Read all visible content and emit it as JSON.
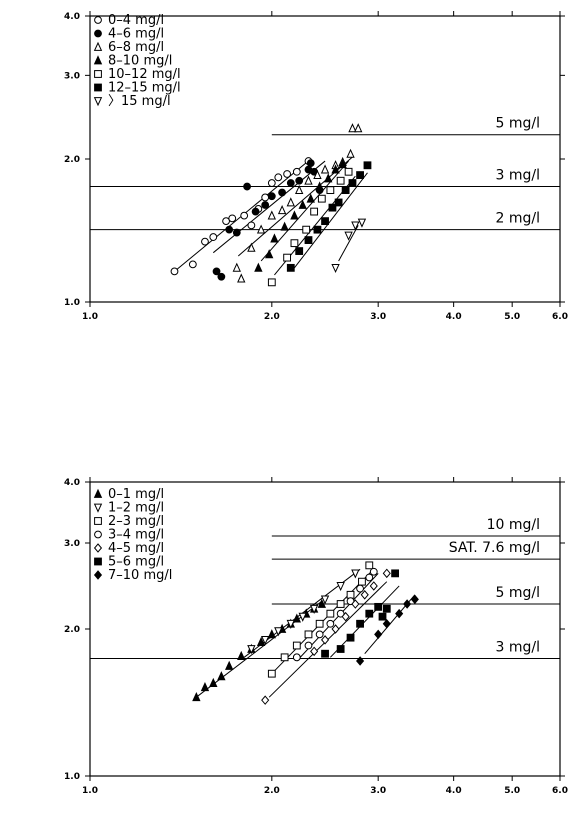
{
  "chart_data": [
    {
      "type": "scatter",
      "x_scale": "log",
      "y_scale": "log",
      "xlim": [
        1.0,
        6.0
      ],
      "ylim": [
        1.0,
        4.0
      ],
      "x_ticks": [
        1.0,
        2.0,
        3.0,
        4.0,
        5.0,
        6.0
      ],
      "x_tick_labels": [
        "1.0",
        "2.0",
        "3.0",
        "4.0",
        "5.0",
        "6.0"
      ],
      "y_ticks": [
        1.0,
        2.0,
        3.0,
        4.0
      ],
      "y_tick_labels": [
        "1.0",
        "2.0",
        "3.0",
        "4.0"
      ],
      "legend_position": "top-left",
      "reference_lines": [
        {
          "label": "5 mg/l",
          "y": 2.25,
          "x_start": 2.0
        },
        {
          "label": "3 mg/l",
          "y": 1.75,
          "x_start": 1.0
        },
        {
          "label": "2 mg/l",
          "y": 1.42,
          "x_start": 1.0
        }
      ],
      "series": [
        {
          "name": "0–4 mg/l",
          "marker": "circle-open",
          "points": [
            [
              1.38,
              1.16
            ],
            [
              1.48,
              1.2
            ],
            [
              1.55,
              1.34
            ],
            [
              1.6,
              1.37
            ],
            [
              1.68,
              1.48
            ],
            [
              1.72,
              1.5
            ],
            [
              1.8,
              1.52
            ],
            [
              1.85,
              1.45
            ],
            [
              1.9,
              1.57
            ],
            [
              1.95,
              1.66
            ],
            [
              2.0,
              1.78
            ],
            [
              2.05,
              1.83
            ],
            [
              2.12,
              1.86
            ],
            [
              2.2,
              1.88
            ],
            [
              2.3,
              1.98
            ]
          ],
          "fit": [
            [
              1.38,
              1.16
            ],
            [
              2.32,
              2.0
            ]
          ]
        },
        {
          "name": "4–6 mg/l",
          "marker": "circle-filled",
          "points": [
            [
              1.62,
              1.16
            ],
            [
              1.65,
              1.13
            ],
            [
              1.7,
              1.42
            ],
            [
              1.75,
              1.4
            ],
            [
              1.82,
              1.75
            ],
            [
              1.88,
              1.55
            ],
            [
              1.95,
              1.6
            ],
            [
              2.0,
              1.67
            ],
            [
              2.08,
              1.7
            ],
            [
              2.15,
              1.78
            ],
            [
              2.22,
              1.8
            ],
            [
              2.3,
              1.9
            ],
            [
              2.32,
              1.96
            ],
            [
              2.35,
              1.88
            ],
            [
              2.4,
              1.72
            ]
          ],
          "fit": [
            [
              1.6,
              1.27
            ],
            [
              2.45,
              1.98
            ]
          ]
        },
        {
          "name": "6–8 mg/l",
          "marker": "triangle-up-open",
          "points": [
            [
              1.75,
              1.18
            ],
            [
              1.78,
              1.12
            ],
            [
              1.85,
              1.3
            ],
            [
              1.92,
              1.42
            ],
            [
              2.0,
              1.52
            ],
            [
              2.08,
              1.56
            ],
            [
              2.15,
              1.62
            ],
            [
              2.22,
              1.72
            ],
            [
              2.3,
              1.8
            ],
            [
              2.38,
              1.85
            ],
            [
              2.45,
              1.9
            ],
            [
              2.55,
              1.94
            ],
            [
              2.62,
              1.97
            ],
            [
              2.7,
              2.05
            ],
            [
              2.72,
              2.32
            ],
            [
              2.78,
              2.32
            ]
          ],
          "fit": [
            [
              1.76,
              1.25
            ],
            [
              2.72,
              2.02
            ]
          ]
        },
        {
          "name": "8–10 mg/l",
          "marker": "triangle-up-filled",
          "points": [
            [
              1.9,
              1.18
            ],
            [
              1.98,
              1.26
            ],
            [
              2.02,
              1.36
            ],
            [
              2.1,
              1.44
            ],
            [
              2.18,
              1.52
            ],
            [
              2.25,
              1.6
            ],
            [
              2.32,
              1.65
            ],
            [
              2.4,
              1.75
            ],
            [
              2.48,
              1.82
            ],
            [
              2.55,
              1.9
            ],
            [
              2.62,
              1.95
            ]
          ],
          "fit": [
            [
              1.92,
              1.22
            ],
            [
              2.68,
              1.98
            ]
          ]
        },
        {
          "name": "10–12 mg/l",
          "marker": "square-open",
          "points": [
            [
              2.0,
              1.1
            ],
            [
              2.12,
              1.24
            ],
            [
              2.18,
              1.33
            ],
            [
              2.28,
              1.42
            ],
            [
              2.35,
              1.55
            ],
            [
              2.42,
              1.65
            ],
            [
              2.5,
              1.72
            ],
            [
              2.6,
              1.8
            ],
            [
              2.68,
              1.88
            ]
          ],
          "fit": [
            [
              2.02,
              1.14
            ],
            [
              2.75,
              1.84
            ]
          ]
        },
        {
          "name": "12–15 mg/l",
          "marker": "square-filled",
          "points": [
            [
              2.15,
              1.18
            ],
            [
              2.22,
              1.28
            ],
            [
              2.3,
              1.35
            ],
            [
              2.38,
              1.42
            ],
            [
              2.45,
              1.48
            ],
            [
              2.52,
              1.58
            ],
            [
              2.58,
              1.62
            ],
            [
              2.65,
              1.72
            ],
            [
              2.72,
              1.78
            ],
            [
              2.8,
              1.85
            ],
            [
              2.88,
              1.94
            ]
          ],
          "fit": [
            [
              2.18,
              1.18
            ],
            [
              2.88,
              1.87
            ]
          ]
        },
        {
          "name": "〉15 mg/l",
          "marker": "triangle-down-open",
          "points": [
            [
              2.55,
              1.18
            ],
            [
              2.68,
              1.38
            ],
            [
              2.75,
              1.45
            ],
            [
              2.82,
              1.47
            ]
          ],
          "fit": [
            [
              2.58,
              1.22
            ],
            [
              2.78,
              1.45
            ]
          ]
        }
      ]
    },
    {
      "type": "scatter",
      "x_scale": "log",
      "y_scale": "log",
      "xlim": [
        1.0,
        6.0
      ],
      "ylim": [
        1.0,
        4.0
      ],
      "x_ticks": [
        1.0,
        2.0,
        3.0,
        4.0,
        5.0,
        6.0
      ],
      "x_tick_labels": [
        "1.0",
        "2.0",
        "3.0",
        "4.0",
        "5.0",
        "6.0"
      ],
      "y_ticks": [
        1.0,
        2.0,
        3.0,
        4.0
      ],
      "y_tick_labels": [
        "1.0",
        "2.0",
        "3.0",
        "4.0"
      ],
      "legend_position": "top-left",
      "reference_lines": [
        {
          "label": "10 mg/l",
          "y": 3.1,
          "x_start": 2.0
        },
        {
          "label": "SAT. 7.6 mg/l",
          "y": 2.78,
          "x_start": 2.0
        },
        {
          "label": "5 mg/l",
          "y": 2.25,
          "x_start": 2.0
        },
        {
          "label": "3 mg/l",
          "y": 1.74,
          "x_start": 1.0
        }
      ],
      "series": [
        {
          "name": "0–1 mg/l",
          "marker": "triangle-up-filled",
          "points": [
            [
              1.5,
              1.45
            ],
            [
              1.55,
              1.52
            ],
            [
              1.6,
              1.55
            ],
            [
              1.65,
              1.6
            ],
            [
              1.7,
              1.68
            ],
            [
              1.78,
              1.76
            ],
            [
              1.85,
              1.82
            ],
            [
              1.92,
              1.88
            ],
            [
              2.0,
              1.95
            ],
            [
              2.08,
              2.0
            ],
            [
              2.15,
              2.05
            ],
            [
              2.2,
              2.1
            ],
            [
              2.28,
              2.15
            ],
            [
              2.35,
              2.2
            ],
            [
              2.42,
              2.25
            ]
          ],
          "fit": [
            [
              1.5,
              1.45
            ],
            [
              2.42,
              2.28
            ]
          ]
        },
        {
          "name": "1–2 mg/l",
          "marker": "triangle-down-open",
          "points": [
            [
              1.85,
              1.82
            ],
            [
              1.95,
              1.9
            ],
            [
              2.05,
              1.98
            ],
            [
              2.15,
              2.05
            ],
            [
              2.25,
              2.12
            ],
            [
              2.35,
              2.2
            ],
            [
              2.45,
              2.3
            ],
            [
              2.6,
              2.45
            ],
            [
              2.75,
              2.6
            ]
          ],
          "fit": [
            [
              1.8,
              1.75
            ],
            [
              2.8,
              2.65
            ]
          ]
        },
        {
          "name": "2–3 mg/l",
          "marker": "square-open",
          "points": [
            [
              2.0,
              1.62
            ],
            [
              2.1,
              1.75
            ],
            [
              2.2,
              1.85
            ],
            [
              2.3,
              1.95
            ],
            [
              2.4,
              2.05
            ],
            [
              2.5,
              2.15
            ],
            [
              2.6,
              2.25
            ],
            [
              2.7,
              2.35
            ],
            [
              2.82,
              2.5
            ],
            [
              2.9,
              2.7
            ]
          ],
          "fit": [
            [
              1.98,
              1.6
            ],
            [
              2.92,
              2.62
            ]
          ]
        },
        {
          "name": "3–4 mg/l",
          "marker": "circle-open",
          "points": [
            [
              2.2,
              1.75
            ],
            [
              2.3,
              1.85
            ],
            [
              2.4,
              1.95
            ],
            [
              2.5,
              2.05
            ],
            [
              2.6,
              2.15
            ],
            [
              2.7,
              2.28
            ],
            [
              2.8,
              2.42
            ],
            [
              2.9,
              2.55
            ],
            [
              2.95,
              2.62
            ]
          ],
          "fit": [
            [
              2.2,
              1.72
            ],
            [
              3.0,
              2.6
            ]
          ]
        },
        {
          "name": "4–5 mg/l",
          "marker": "diamond-open",
          "points": [
            [
              1.95,
              1.43
            ],
            [
              2.35,
              1.8
            ],
            [
              2.45,
              1.9
            ],
            [
              2.55,
              2.0
            ],
            [
              2.65,
              2.12
            ],
            [
              2.75,
              2.25
            ],
            [
              2.85,
              2.35
            ],
            [
              2.95,
              2.45
            ],
            [
              3.1,
              2.6
            ]
          ],
          "fit": [
            [
              1.98,
              1.45
            ],
            [
              3.1,
              2.5
            ]
          ]
        },
        {
          "name": "5–6 mg/l",
          "marker": "square-filled",
          "points": [
            [
              2.45,
              1.78
            ],
            [
              2.6,
              1.82
            ],
            [
              2.7,
              1.92
            ],
            [
              2.8,
              2.05
            ],
            [
              2.9,
              2.15
            ],
            [
              3.0,
              2.22
            ],
            [
              3.05,
              2.12
            ],
            [
              3.1,
              2.2
            ],
            [
              3.2,
              2.6
            ]
          ],
          "fit": [
            [
              2.5,
              1.75
            ],
            [
              3.25,
              2.45
            ]
          ]
        },
        {
          "name": "7–10 mg/l",
          "marker": "diamond-filled",
          "points": [
            [
              2.8,
              1.72
            ],
            [
              3.0,
              1.95
            ],
            [
              3.1,
              2.05
            ],
            [
              3.25,
              2.15
            ],
            [
              3.35,
              2.25
            ],
            [
              3.45,
              2.3
            ]
          ],
          "fit": [
            [
              2.85,
              1.78
            ],
            [
              3.45,
              2.35
            ]
          ]
        }
      ]
    }
  ]
}
